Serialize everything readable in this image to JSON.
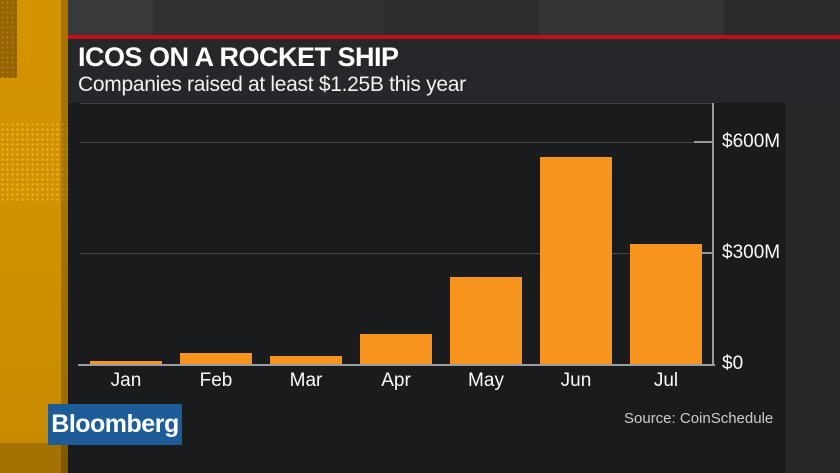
{
  "header": {
    "title": "ICOS ON A ROCKET SHIP",
    "subtitle": "Companies raised at least $1.25B this year"
  },
  "chart_data": {
    "type": "bar",
    "title": "ICOS ON A ROCKET SHIP",
    "subtitle": "Companies raised at least $1.25B this year",
    "categories": [
      "Jan",
      "Feb",
      "Mar",
      "Apr",
      "May",
      "Jun",
      "Jul"
    ],
    "values": [
      8,
      30,
      22,
      80,
      235,
      560,
      325
    ],
    "unit": "USD millions",
    "xlabel": "",
    "ylabel": "",
    "ylim": [
      0,
      700
    ],
    "y_ticks": [
      {
        "label": "$600M",
        "value": 600
      },
      {
        "label": "$300M",
        "value": 300
      },
      {
        "label": "$0",
        "value": 0
      }
    ],
    "grid": "horizontal",
    "legend_position": "none",
    "bar_color": "#F7941E",
    "axis_side": "right",
    "source": "Source: CoinSchedule"
  },
  "footer": {
    "source": "Source: CoinSchedule",
    "logo_text": "Bloomberg"
  },
  "colors": {
    "bar_orange": "#F7941E",
    "accent_red": "#C01015",
    "logo_blue": "#1E5C97",
    "panel_bg": "#1A1B1D",
    "title_band_bg": "#26272B",
    "strip_amber": "#D09100"
  }
}
